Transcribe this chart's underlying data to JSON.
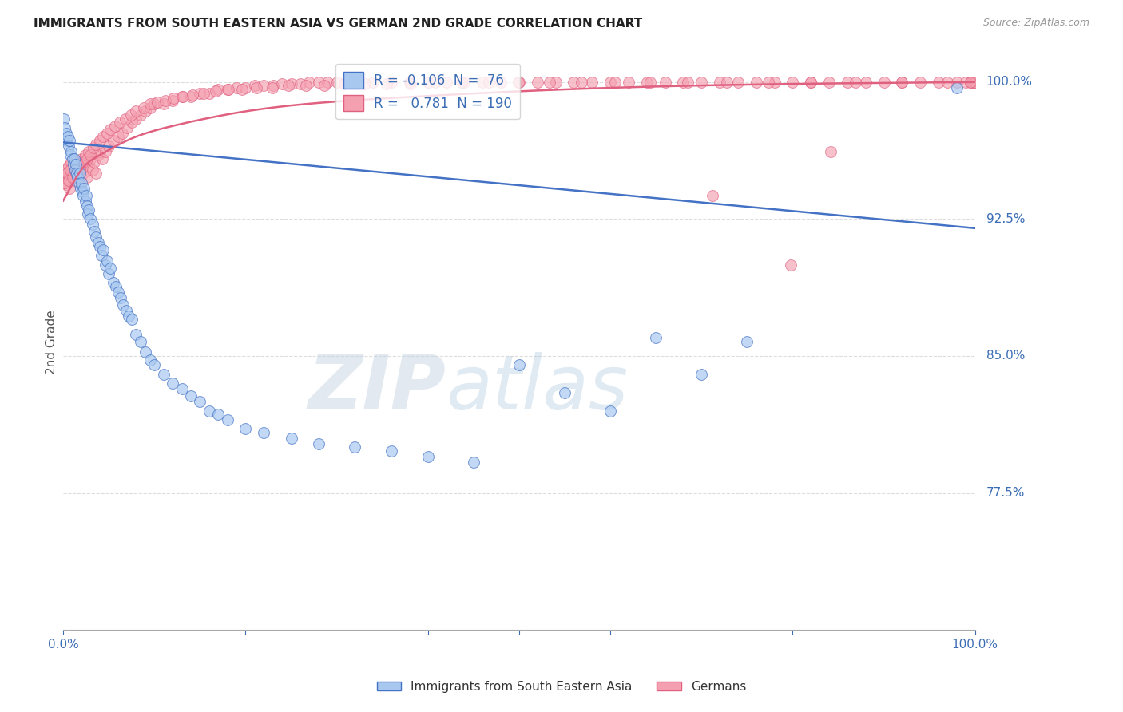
{
  "title": "IMMIGRANTS FROM SOUTH EASTERN ASIA VS GERMAN 2ND GRADE CORRELATION CHART",
  "source": "Source: ZipAtlas.com",
  "ylabel": "2nd Grade",
  "ylabel_right_ticks": [
    "100.0%",
    "92.5%",
    "85.0%",
    "77.5%"
  ],
  "ylabel_right_vals": [
    1.0,
    0.925,
    0.85,
    0.775
  ],
  "legend_blue_r": "-0.106",
  "legend_blue_n": "76",
  "legend_pink_r": "0.781",
  "legend_pink_n": "190",
  "blue_color": "#A8C8F0",
  "pink_color": "#F4A0B0",
  "blue_line_color": "#4472C4",
  "pink_line_color": "#E06080",
  "background_color": "#FFFFFF",
  "watermark_zip": "ZIP",
  "watermark_atlas": "atlas",
  "grid_color": "#DDDDDD",
  "blue_scatter_x": [
    0.001,
    0.002,
    0.003,
    0.004,
    0.005,
    0.006,
    0.007,
    0.008,
    0.009,
    0.01,
    0.011,
    0.012,
    0.013,
    0.014,
    0.015,
    0.016,
    0.017,
    0.018,
    0.019,
    0.02,
    0.021,
    0.022,
    0.023,
    0.024,
    0.025,
    0.026,
    0.027,
    0.028,
    0.03,
    0.032,
    0.034,
    0.036,
    0.038,
    0.04,
    0.042,
    0.044,
    0.046,
    0.048,
    0.05,
    0.052,
    0.055,
    0.058,
    0.06,
    0.063,
    0.066,
    0.069,
    0.072,
    0.075,
    0.08,
    0.085,
    0.09,
    0.095,
    0.1,
    0.11,
    0.12,
    0.13,
    0.14,
    0.15,
    0.16,
    0.17,
    0.18,
    0.2,
    0.22,
    0.25,
    0.28,
    0.32,
    0.36,
    0.4,
    0.45,
    0.5,
    0.55,
    0.6,
    0.65,
    0.7,
    0.75,
    0.98
  ],
  "blue_scatter_y": [
    0.98,
    0.975,
    0.972,
    0.968,
    0.97,
    0.965,
    0.968,
    0.96,
    0.962,
    0.958,
    0.955,
    0.958,
    0.952,
    0.955,
    0.95,
    0.948,
    0.945,
    0.95,
    0.942,
    0.945,
    0.94,
    0.938,
    0.942,
    0.935,
    0.938,
    0.932,
    0.928,
    0.93,
    0.925,
    0.922,
    0.918,
    0.915,
    0.912,
    0.91,
    0.905,
    0.908,
    0.9,
    0.902,
    0.895,
    0.898,
    0.89,
    0.888,
    0.885,
    0.882,
    0.878,
    0.875,
    0.872,
    0.87,
    0.862,
    0.858,
    0.852,
    0.848,
    0.845,
    0.84,
    0.835,
    0.832,
    0.828,
    0.825,
    0.82,
    0.818,
    0.815,
    0.81,
    0.808,
    0.805,
    0.802,
    0.8,
    0.798,
    0.795,
    0.792,
    0.845,
    0.83,
    0.82,
    0.86,
    0.84,
    0.858,
    0.997
  ],
  "pink_scatter_x": [
    0.001,
    0.002,
    0.003,
    0.004,
    0.005,
    0.006,
    0.007,
    0.008,
    0.009,
    0.01,
    0.011,
    0.012,
    0.013,
    0.014,
    0.015,
    0.016,
    0.017,
    0.018,
    0.019,
    0.02,
    0.022,
    0.024,
    0.026,
    0.028,
    0.03,
    0.032,
    0.034,
    0.036,
    0.038,
    0.04,
    0.043,
    0.046,
    0.05,
    0.055,
    0.06,
    0.065,
    0.07,
    0.075,
    0.08,
    0.085,
    0.09,
    0.095,
    0.1,
    0.11,
    0.12,
    0.13,
    0.14,
    0.15,
    0.16,
    0.17,
    0.18,
    0.19,
    0.2,
    0.21,
    0.22,
    0.23,
    0.24,
    0.25,
    0.26,
    0.27,
    0.28,
    0.29,
    0.3,
    0.31,
    0.32,
    0.34,
    0.36,
    0.38,
    0.4,
    0.42,
    0.44,
    0.46,
    0.48,
    0.5,
    0.52,
    0.54,
    0.56,
    0.58,
    0.6,
    0.62,
    0.64,
    0.66,
    0.68,
    0.7,
    0.72,
    0.74,
    0.76,
    0.78,
    0.8,
    0.82,
    0.84,
    0.86,
    0.88,
    0.9,
    0.92,
    0.94,
    0.96,
    0.98,
    0.99,
    0.995,
    0.997,
    0.999,
    1.0,
    0.002,
    0.004,
    0.006,
    0.008,
    0.01,
    0.012,
    0.014,
    0.016,
    0.018,
    0.02,
    0.022,
    0.024,
    0.026,
    0.028,
    0.03,
    0.033,
    0.036,
    0.04,
    0.044,
    0.048,
    0.052,
    0.057,
    0.062,
    0.068,
    0.074,
    0.08,
    0.088,
    0.095,
    0.103,
    0.112,
    0.121,
    0.131,
    0.142,
    0.154,
    0.167,
    0.181,
    0.196,
    0.212,
    0.229,
    0.247,
    0.266,
    0.286,
    0.308,
    0.331,
    0.355,
    0.381,
    0.408,
    0.437,
    0.467,
    0.499,
    0.533,
    0.568,
    0.605,
    0.644,
    0.685,
    0.728,
    0.773,
    0.82,
    0.869,
    0.92,
    0.97,
    0.995,
    0.712,
    0.798,
    0.842
  ],
  "pink_scatter_y": [
    0.948,
    0.952,
    0.944,
    0.95,
    0.946,
    0.954,
    0.942,
    0.95,
    0.956,
    0.95,
    0.952,
    0.948,
    0.946,
    0.954,
    0.95,
    0.954,
    0.948,
    0.952,
    0.946,
    0.956,
    0.95,
    0.956,
    0.948,
    0.954,
    0.958,
    0.952,
    0.956,
    0.95,
    0.96,
    0.962,
    0.958,
    0.962,
    0.965,
    0.968,
    0.97,
    0.972,
    0.975,
    0.978,
    0.98,
    0.982,
    0.984,
    0.986,
    0.988,
    0.988,
    0.99,
    0.992,
    0.992,
    0.994,
    0.994,
    0.996,
    0.996,
    0.997,
    0.997,
    0.998,
    0.998,
    0.998,
    0.999,
    0.999,
    0.999,
    1.0,
    1.0,
    1.0,
    1.0,
    1.0,
    1.0,
    1.0,
    1.0,
    1.0,
    1.0,
    1.0,
    1.0,
    1.0,
    1.0,
    1.0,
    1.0,
    1.0,
    1.0,
    1.0,
    1.0,
    1.0,
    1.0,
    1.0,
    1.0,
    1.0,
    1.0,
    1.0,
    1.0,
    1.0,
    1.0,
    1.0,
    1.0,
    1.0,
    1.0,
    1.0,
    1.0,
    1.0,
    1.0,
    1.0,
    1.0,
    1.0,
    1.0,
    1.0,
    1.0,
    0.945,
    0.95,
    0.946,
    0.952,
    0.948,
    0.954,
    0.95,
    0.956,
    0.952,
    0.958,
    0.956,
    0.96,
    0.958,
    0.962,
    0.96,
    0.964,
    0.966,
    0.968,
    0.97,
    0.972,
    0.974,
    0.976,
    0.978,
    0.98,
    0.982,
    0.984,
    0.986,
    0.988,
    0.989,
    0.99,
    0.991,
    0.992,
    0.993,
    0.994,
    0.995,
    0.996,
    0.996,
    0.997,
    0.997,
    0.998,
    0.998,
    0.998,
    0.999,
    0.999,
    0.999,
    0.999,
    1.0,
    1.0,
    1.0,
    1.0,
    1.0,
    1.0,
    1.0,
    1.0,
    1.0,
    1.0,
    1.0,
    1.0,
    1.0,
    1.0,
    1.0,
    1.0,
    0.938,
    0.9,
    0.962
  ],
  "xlim": [
    0.0,
    1.0
  ],
  "ylim": [
    0.7,
    1.015
  ],
  "blue_trend_start_y": 0.967,
  "blue_trend_end_y": 0.92,
  "pink_trend_pts_x": [
    0.0,
    0.01,
    0.02,
    0.04,
    0.07,
    0.12,
    0.2,
    0.35,
    0.55,
    0.8,
    1.0
  ],
  "pink_trend_pts_y": [
    0.935,
    0.944,
    0.952,
    0.96,
    0.968,
    0.976,
    0.984,
    0.991,
    0.996,
    0.999,
    1.0
  ]
}
